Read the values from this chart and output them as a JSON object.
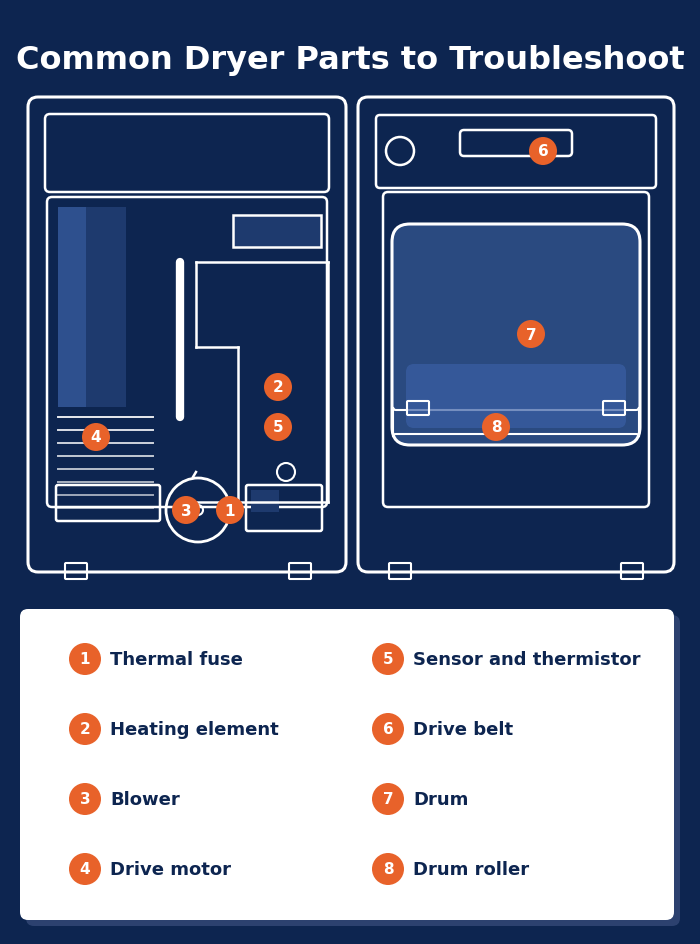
{
  "title": "Common Dryer Parts to Troubleshoot",
  "bg_color": "#0d2550",
  "orange": "#e8622a",
  "white": "#ffffff",
  "legend_bg": "#ffffff",
  "legend_text_color": "#0d2550",
  "shadow_color": "#8899bb",
  "blue_panel": "#1e3a6e",
  "blue_mid": "#2a4a80",
  "blue_light": "#3a5fa5",
  "items_left": [
    {
      "num": "1",
      "label": "Thermal fuse"
    },
    {
      "num": "2",
      "label": "Heating element"
    },
    {
      "num": "3",
      "label": "Blower"
    },
    {
      "num": "4",
      "label": "Drive motor"
    }
  ],
  "items_right": [
    {
      "num": "5",
      "label": "Sensor and thermistor"
    },
    {
      "num": "6",
      "label": "Drive belt"
    },
    {
      "num": "7",
      "label": "Drum"
    },
    {
      "num": "8",
      "label": "Drum roller"
    }
  ]
}
